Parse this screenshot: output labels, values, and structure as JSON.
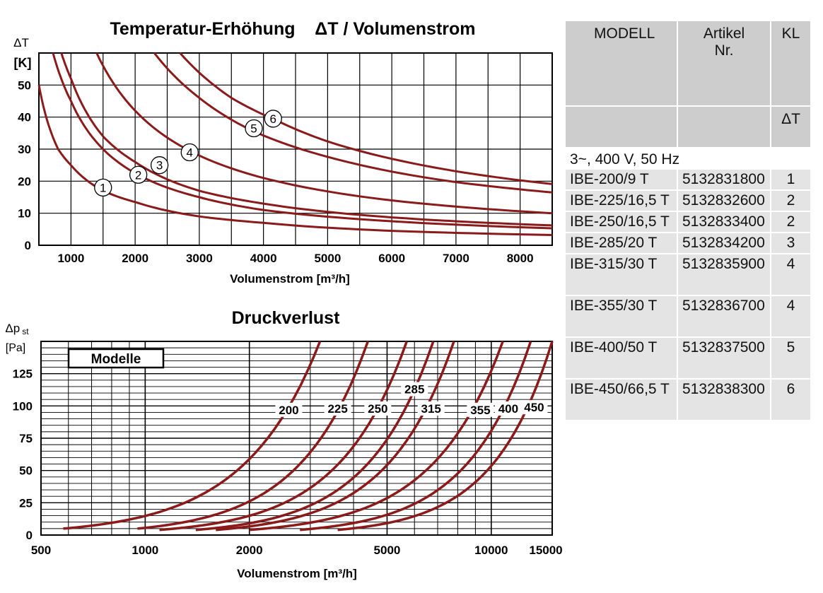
{
  "temp_chart": {
    "title": "Temperatur-Erhöhung    ΔT / Volumenstrom",
    "ylabel_1": "ΔT",
    "ylabel_2": "[K]",
    "xlabel": "Volumenstrom  [m³/h]",
    "y_ticks": [
      "0",
      "10",
      "20",
      "30",
      "40",
      "50"
    ],
    "x_ticks": [
      "1000",
      "2000",
      "3000",
      "4000",
      "5000",
      "6000",
      "7000",
      "8000"
    ]
  },
  "pressure_chart": {
    "title": "Druckverlust",
    "ylabel_1": "Δp",
    "ylabel_sub": "st",
    "ylabel_2": "[Pa]",
    "legend_label": "Modelle",
    "xlabel": "Volumenstrom  [m³/h]",
    "y_ticks": [
      "0",
      "25",
      "50",
      "75",
      "100",
      "125"
    ],
    "x_ticks": [
      "500",
      "1000",
      "2000",
      "5000",
      "10000",
      "15000"
    ]
  },
  "chart_data": [
    {
      "type": "line",
      "title": "Temperatur-Erhöhung    ΔT / Volumenstrom",
      "xlabel": "Volumenstrom  [m³/h]",
      "ylabel": "ΔT [K]",
      "xlim": [
        500,
        8500
      ],
      "ylim": [
        0,
        60
      ],
      "grid": true,
      "series": [
        {
          "name": "1",
          "x": [
            500,
            800,
            1000,
            1500,
            2000,
            3000,
            4000,
            6000,
            8500
          ],
          "y": [
            50,
            30,
            25,
            17,
            13.5,
            9,
            7,
            4.5,
            3.2
          ]
        },
        {
          "name": "2",
          "x": [
            720,
            1000,
            1500,
            2000,
            3000,
            4000,
            6000,
            8500
          ],
          "y": [
            60,
            45,
            30,
            22.5,
            15,
            11,
            7.5,
            5.3
          ]
        },
        {
          "name": "3",
          "x": [
            850,
            1000,
            1500,
            2000,
            3000,
            4000,
            6000,
            8500
          ],
          "y": [
            60,
            52,
            34,
            26,
            17,
            13,
            8.7,
            6.2
          ]
        },
        {
          "name": "4",
          "x": [
            1400,
            2000,
            2800,
            4000,
            6000,
            8500
          ],
          "y": [
            60,
            42,
            30,
            21,
            14,
            10
          ]
        },
        {
          "name": "5",
          "x": [
            2300,
            3000,
            3800,
            5000,
            7000,
            8500
          ],
          "y": [
            60,
            46,
            36,
            27.6,
            19.7,
            16.5
          ]
        },
        {
          "name": "6",
          "x": [
            2700,
            3500,
            4200,
            5000,
            7000,
            8500
          ],
          "y": [
            60,
            46,
            39,
            32.4,
            23.1,
            19.1
          ]
        }
      ],
      "curve_labels": [
        {
          "text": "1",
          "x": 1500,
          "y": 18
        },
        {
          "text": "2",
          "x": 2050,
          "y": 22
        },
        {
          "text": "3",
          "x": 2380,
          "y": 25
        },
        {
          "text": "4",
          "x": 2850,
          "y": 29
        },
        {
          "text": "5",
          "x": 3850,
          "y": 36.5
        },
        {
          "text": "6",
          "x": 4150,
          "y": 39.5
        }
      ]
    },
    {
      "type": "line",
      "title": "Druckverlust",
      "xlabel": "Volumenstrom  [m³/h]",
      "ylabel": "Δp st [Pa]",
      "xscale": "log",
      "xlim": [
        500,
        15000
      ],
      "ylim": [
        0,
        150
      ],
      "grid": true,
      "legend_title": "Modelle",
      "series": [
        {
          "name": "200",
          "x_start": 580,
          "x_end": 3200,
          "y_start": 5
        },
        {
          "name": "225",
          "x_start": 950,
          "x_end": 4400,
          "y_start": 5
        },
        {
          "name": "250",
          "x_start": 1100,
          "x_end": 5700,
          "y_start": 4
        },
        {
          "name": "285",
          "x_start": 1400,
          "x_end": 6800,
          "y_start": 4
        },
        {
          "name": "315",
          "x_start": 1600,
          "x_end": 7800,
          "y_start": 4
        },
        {
          "name": "355",
          "x_start": 2000,
          "x_end": 10800,
          "y_start": 4
        },
        {
          "name": "400",
          "x_start": 2800,
          "x_end": 13000,
          "y_start": 4
        },
        {
          "name": "450",
          "x_start": 3600,
          "x_end": 15000,
          "y_start": 4
        }
      ],
      "curve_labels": [
        {
          "text": "200",
          "x": 2600,
          "y": 97
        },
        {
          "text": "225",
          "x": 3600,
          "y": 98
        },
        {
          "text": "250",
          "x": 4700,
          "y": 98
        },
        {
          "text": "285",
          "x": 6000,
          "y": 113
        },
        {
          "text": "315",
          "x": 6700,
          "y": 98
        },
        {
          "text": "355",
          "x": 9300,
          "y": 97
        },
        {
          "text": "400",
          "x": 11200,
          "y": 98
        },
        {
          "text": "450",
          "x": 13300,
          "y": 99
        }
      ]
    }
  ],
  "colors": {
    "curve": "#8b1a1a",
    "grid": "#000000",
    "table_header": "#cdcdcd",
    "table_row": "#e4e4e4"
  },
  "table": {
    "headers": {
      "modell": "MODELL",
      "artikel_1": "Artikel",
      "artikel_2": "Nr.",
      "kl": "KL",
      "delta_t": "ΔT"
    },
    "group": "3~, 400 V, 50 Hz",
    "rows": [
      {
        "modell": "IBE-200/9 T",
        "artikel": "5132831800",
        "kl": "1"
      },
      {
        "modell": "IBE-225/16,5 T",
        "artikel": "5132832600",
        "kl": "2"
      },
      {
        "modell": "IBE-250/16,5 T",
        "artikel": "5132833400",
        "kl": "2"
      },
      {
        "modell": "IBE-285/20 T",
        "artikel": "5132834200",
        "kl": "3"
      },
      {
        "modell": "IBE-315/30 T",
        "artikel": "5132835900",
        "kl": "4"
      },
      {
        "modell": "IBE-355/30 T",
        "artikel": "5132836700",
        "kl": "4"
      },
      {
        "modell": "IBE-400/50 T",
        "artikel": "5132837500",
        "kl": "5"
      },
      {
        "modell": "IBE-450/66,5 T",
        "artikel": "5132838300",
        "kl": "6"
      }
    ]
  }
}
